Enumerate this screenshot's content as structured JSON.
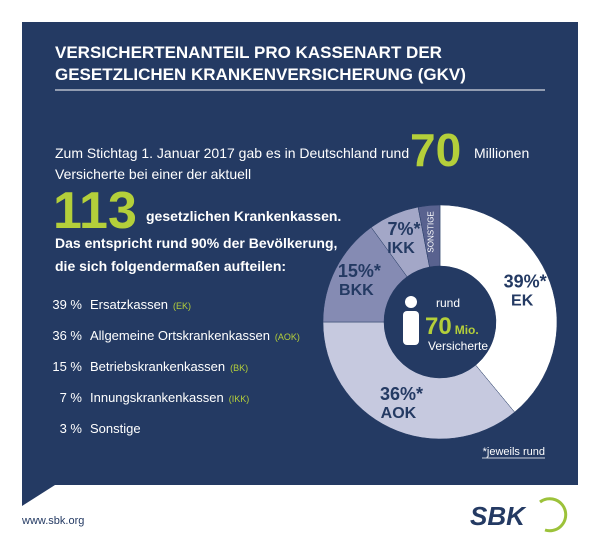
{
  "header": {
    "title_lines": [
      "VERSICHERTENANTEIL PRO KASSENART DER",
      "GESETZLICHEN KRANKENVERSICHERUNG (GKV)"
    ]
  },
  "intro": {
    "line1": "Zum Stichtag 1. Januar 2017 gab es in Deutschland rund",
    "big1": "70",
    "line1_end": "Millionen",
    "line2": "Versicherte bei einer der aktuell",
    "big2": "113",
    "line3": "gesetzlichen Krankenkassen.",
    "bold1": "Das entspricht rund 90% der Bevölkerung,",
    "bold2": "die sich folgendermaßen aufteilen:"
  },
  "list": [
    {
      "share": "39 %",
      "name": "Ersatzkassen",
      "abbr": "(EK)"
    },
    {
      "share": "36 %",
      "name": "Allgemeine Ortskrankenkassen",
      "abbr": "(AOK)"
    },
    {
      "share": "15 %",
      "name": "Betriebskrankenkassen",
      "abbr": "(BK)"
    },
    {
      "share": "7 %",
      "name": "Innungskrankenkassen",
      "abbr": "(IKK)"
    },
    {
      "share": "3 %",
      "name": "Sonstige",
      "abbr": null
    }
  ],
  "chart_data": {
    "type": "donut",
    "categories": [
      "EK",
      "AOK",
      "BKK",
      "IKK",
      "SONSTIGE"
    ],
    "values": [
      39,
      36,
      15,
      7,
      3
    ],
    "value_labels": [
      "39%*",
      "36%*",
      "15%*",
      "7%*",
      null
    ],
    "colors": [
      "#ffffff",
      "#c6c9df",
      "#858bb3",
      "#a3a7c7",
      "#59628f"
    ],
    "center": {
      "top": "rund",
      "number": "70",
      "unit": "Mio.",
      "bottom": "Versicherte"
    },
    "note": "*jeweils rund"
  },
  "footer": {
    "url": "www.sbk.org",
    "logo": "SBK"
  }
}
